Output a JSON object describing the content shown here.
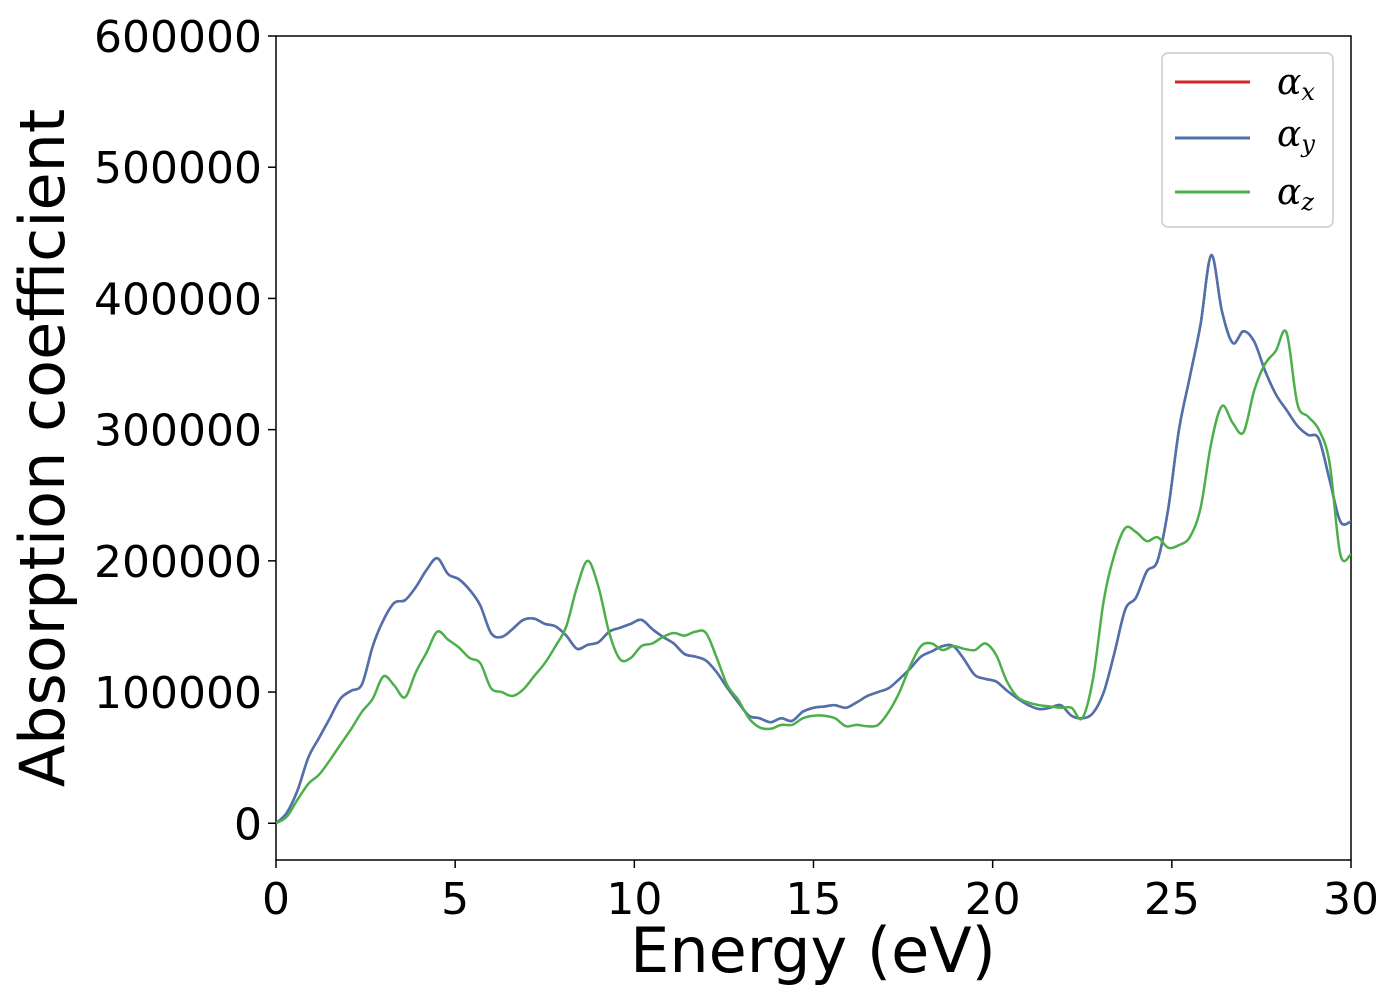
{
  "chart_data": {
    "type": "line",
    "title": "",
    "xlabel": "Energy (eV)",
    "ylabel": "Absorption coefficient",
    "xlim": [
      0,
      30
    ],
    "ylim": [
      -28000,
      600000
    ],
    "xticks": [
      0,
      5,
      10,
      15,
      20,
      25,
      30
    ],
    "yticks": [
      0,
      100000,
      200000,
      300000,
      400000,
      500000,
      600000
    ],
    "grid": false,
    "legend_position": "top-right",
    "series": [
      {
        "name": "x",
        "color": "#d62728",
        "x": [
          0,
          0.3,
          0.6,
          0.9,
          1.2,
          1.5,
          1.8,
          2.1,
          2.4,
          2.7,
          3.0,
          3.3,
          3.6,
          3.9,
          4.2,
          4.5,
          4.8,
          5.1,
          5.4,
          5.7,
          6.0,
          6.3,
          6.6,
          6.9,
          7.2,
          7.5,
          7.8,
          8.1,
          8.4,
          8.7,
          9.0,
          9.3,
          9.6,
          9.9,
          10.2,
          10.5,
          10.8,
          11.1,
          11.4,
          11.7,
          12.0,
          12.3,
          12.6,
          12.9,
          13.2,
          13.5,
          13.8,
          14.1,
          14.4,
          14.7,
          15.0,
          15.3,
          15.6,
          15.9,
          16.2,
          16.5,
          16.8,
          17.1,
          17.4,
          17.7,
          18.0,
          18.3,
          18.6,
          18.9,
          19.2,
          19.5,
          19.8,
          20.1,
          20.4,
          20.7,
          21.0,
          21.3,
          21.6,
          21.9,
          22.2,
          22.5,
          22.8,
          23.1,
          23.4,
          23.7,
          24.0,
          24.3,
          24.6,
          24.9,
          25.2,
          25.5,
          25.8,
          26.1,
          26.4,
          26.7,
          27.0,
          27.3,
          27.6,
          27.9,
          28.2,
          28.5,
          28.8,
          29.1,
          29.4,
          29.7,
          30.0
        ],
        "values": [
          0,
          8000,
          25000,
          50000,
          65000,
          80000,
          95000,
          101000,
          106000,
          135000,
          155000,
          168000,
          170000,
          180000,
          193000,
          202000,
          190000,
          186000,
          178000,
          166000,
          145000,
          142000,
          148000,
          155000,
          156000,
          152000,
          150000,
          143000,
          133000,
          136000,
          138000,
          146000,
          149000,
          152000,
          155000,
          148000,
          142000,
          137000,
          129000,
          127000,
          124000,
          115000,
          103000,
          92000,
          82000,
          80000,
          77000,
          80000,
          78000,
          85000,
          88000,
          89000,
          90000,
          88000,
          92000,
          97000,
          100000,
          103000,
          110000,
          118000,
          127000,
          131000,
          135000,
          135000,
          125000,
          113000,
          110000,
          108000,
          101000,
          95000,
          90000,
          87000,
          88000,
          90000,
          82000,
          80000,
          84000,
          100000,
          130000,
          163000,
          172000,
          192000,
          200000,
          240000,
          300000,
          340000,
          380000,
          433000,
          390000,
          366000,
          375000,
          367000,
          345000,
          327000,
          315000,
          303000,
          296000,
          293000,
          262000,
          230000,
          230000
        ]
      },
      {
        "name": "y",
        "color": "#4c72b0",
        "x": [
          0,
          0.3,
          0.6,
          0.9,
          1.2,
          1.5,
          1.8,
          2.1,
          2.4,
          2.7,
          3.0,
          3.3,
          3.6,
          3.9,
          4.2,
          4.5,
          4.8,
          5.1,
          5.4,
          5.7,
          6.0,
          6.3,
          6.6,
          6.9,
          7.2,
          7.5,
          7.8,
          8.1,
          8.4,
          8.7,
          9.0,
          9.3,
          9.6,
          9.9,
          10.2,
          10.5,
          10.8,
          11.1,
          11.4,
          11.7,
          12.0,
          12.3,
          12.6,
          12.9,
          13.2,
          13.5,
          13.8,
          14.1,
          14.4,
          14.7,
          15.0,
          15.3,
          15.6,
          15.9,
          16.2,
          16.5,
          16.8,
          17.1,
          17.4,
          17.7,
          18.0,
          18.3,
          18.6,
          18.9,
          19.2,
          19.5,
          19.8,
          20.1,
          20.4,
          20.7,
          21.0,
          21.3,
          21.6,
          21.9,
          22.2,
          22.5,
          22.8,
          23.1,
          23.4,
          23.7,
          24.0,
          24.3,
          24.6,
          24.9,
          25.2,
          25.5,
          25.8,
          26.1,
          26.4,
          26.7,
          27.0,
          27.3,
          27.6,
          27.9,
          28.2,
          28.5,
          28.8,
          29.1,
          29.4,
          29.7,
          30.0
        ],
        "values": [
          0,
          8000,
          25000,
          50000,
          65000,
          80000,
          95000,
          101000,
          106000,
          135000,
          155000,
          168000,
          170000,
          180000,
          193000,
          202000,
          190000,
          186000,
          178000,
          166000,
          145000,
          142000,
          148000,
          155000,
          156000,
          152000,
          150000,
          143000,
          133000,
          136000,
          138000,
          146000,
          149000,
          152000,
          155000,
          148000,
          142000,
          137000,
          129000,
          127000,
          124000,
          115000,
          103000,
          92000,
          82000,
          80000,
          77000,
          80000,
          78000,
          85000,
          88000,
          89000,
          90000,
          88000,
          92000,
          97000,
          100000,
          103000,
          110000,
          118000,
          127000,
          131000,
          135000,
          135000,
          125000,
          113000,
          110000,
          108000,
          101000,
          95000,
          90000,
          87000,
          88000,
          90000,
          82000,
          80000,
          84000,
          100000,
          130000,
          163000,
          172000,
          192000,
          200000,
          240000,
          300000,
          340000,
          380000,
          433000,
          390000,
          366000,
          375000,
          367000,
          345000,
          327000,
          315000,
          303000,
          296000,
          293000,
          262000,
          230000,
          230000
        ]
      },
      {
        "name": "z",
        "color": "#4daf4a",
        "x": [
          0,
          0.3,
          0.6,
          0.9,
          1.2,
          1.5,
          1.8,
          2.1,
          2.4,
          2.7,
          3.0,
          3.3,
          3.6,
          3.9,
          4.2,
          4.5,
          4.8,
          5.1,
          5.4,
          5.7,
          6.0,
          6.3,
          6.6,
          6.9,
          7.2,
          7.5,
          7.8,
          8.1,
          8.4,
          8.7,
          9.0,
          9.3,
          9.6,
          9.9,
          10.2,
          10.5,
          10.8,
          11.1,
          11.4,
          11.7,
          12.0,
          12.3,
          12.6,
          12.9,
          13.2,
          13.5,
          13.8,
          14.1,
          14.4,
          14.7,
          15.0,
          15.3,
          15.6,
          15.9,
          16.2,
          16.5,
          16.8,
          17.1,
          17.4,
          17.7,
          18.0,
          18.3,
          18.6,
          18.9,
          19.2,
          19.5,
          19.8,
          20.1,
          20.4,
          20.7,
          21.0,
          21.3,
          21.6,
          21.9,
          22.2,
          22.5,
          22.8,
          23.1,
          23.4,
          23.7,
          24.0,
          24.3,
          24.6,
          24.9,
          25.2,
          25.5,
          25.8,
          26.1,
          26.4,
          26.7,
          27.0,
          27.3,
          27.6,
          27.9,
          28.2,
          28.5,
          28.8,
          29.1,
          29.4,
          29.7,
          30.0
        ],
        "values": [
          0,
          5000,
          18000,
          30000,
          37000,
          48000,
          60000,
          72000,
          85000,
          95000,
          112000,
          105000,
          96000,
          115000,
          130000,
          146000,
          140000,
          134000,
          126000,
          122000,
          103000,
          100000,
          97000,
          102000,
          112000,
          122000,
          135000,
          150000,
          180000,
          200000,
          180000,
          145000,
          125000,
          126000,
          135000,
          137000,
          142000,
          145000,
          143000,
          146000,
          145000,
          126000,
          105000,
          94000,
          80000,
          73000,
          72000,
          75000,
          75000,
          80000,
          82000,
          82000,
          80000,
          74000,
          75000,
          74000,
          75000,
          85000,
          100000,
          120000,
          135000,
          137000,
          132000,
          135000,
          133000,
          132000,
          137000,
          128000,
          108000,
          96000,
          92000,
          90000,
          89000,
          88000,
          88000,
          80000,
          110000,
          170000,
          205000,
          225000,
          222000,
          215000,
          218000,
          210000,
          212000,
          218000,
          240000,
          290000,
          318000,
          305000,
          298000,
          330000,
          350000,
          360000,
          374000,
          320000,
          310000,
          300000,
          275000,
          205000,
          205000
        ]
      }
    ]
  },
  "legend": [
    {
      "symbol": "α",
      "sub": "x",
      "color": "#d62728"
    },
    {
      "symbol": "α",
      "sub": "y",
      "color": "#4c72b0"
    },
    {
      "symbol": "α",
      "sub": "z",
      "color": "#4daf4a"
    }
  ]
}
